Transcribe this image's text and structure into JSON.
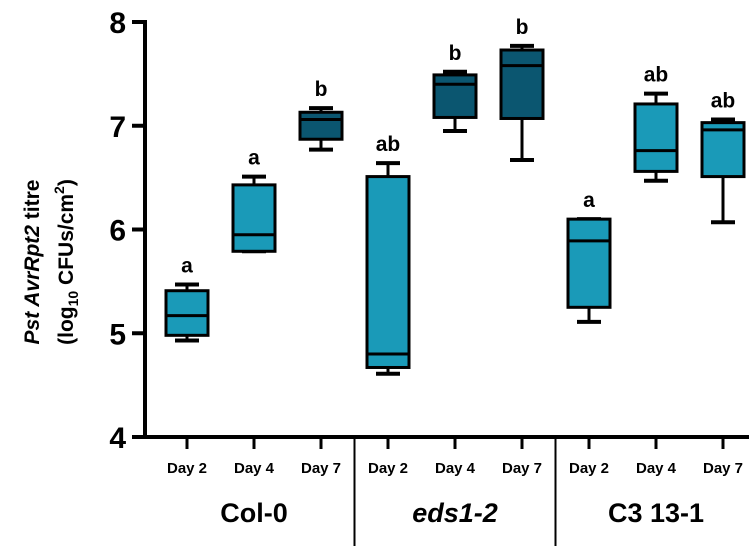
{
  "chart_data": {
    "type": "box",
    "ylabel_line1": {
      "prefix": "Pst AvrRpt2",
      "suffix": " titre"
    },
    "ylabel_line2": {
      "a": "(log",
      "sub": "10",
      "b": " CFUs/cm",
      "sup": "2",
      "c": ")"
    },
    "ylim": [
      4,
      8
    ],
    "yticks": [
      "4",
      "5",
      "6",
      "7",
      "8"
    ],
    "groups": [
      {
        "name": "Col-0",
        "italic": false
      },
      {
        "name": "eds1-2",
        "italic": true
      },
      {
        "name": "C3 13-1",
        "italic": false
      }
    ],
    "colors": {
      "light": "#1a9ab8",
      "dark": "#0b5670",
      "outline": "#000000"
    },
    "boxes": [
      {
        "group": "Col-0",
        "label": "Day 2",
        "min": 4.93,
        "q1": 4.98,
        "median": 5.17,
        "q3": 5.41,
        "max": 5.47,
        "sig": "a",
        "shade": "light"
      },
      {
        "group": "Col-0",
        "label": "Day 4",
        "min": 5.79,
        "q1": 5.79,
        "median": 5.95,
        "q3": 6.43,
        "max": 6.51,
        "sig": "a",
        "shade": "light"
      },
      {
        "group": "Col-0",
        "label": "Day 7",
        "min": 6.77,
        "q1": 6.87,
        "median": 7.06,
        "q3": 7.13,
        "max": 7.17,
        "sig": "b",
        "shade": "dark"
      },
      {
        "group": "eds1-2",
        "label": "Day 2",
        "min": 4.61,
        "q1": 4.67,
        "median": 4.8,
        "q3": 6.51,
        "max": 6.64,
        "sig": "ab",
        "shade": "light"
      },
      {
        "group": "eds1-2",
        "label": "Day 4",
        "min": 6.95,
        "q1": 7.08,
        "median": 7.4,
        "q3": 7.49,
        "max": 7.52,
        "sig": "b",
        "shade": "dark"
      },
      {
        "group": "eds1-2",
        "label": "Day 7",
        "min": 6.67,
        "q1": 7.07,
        "median": 7.58,
        "q3": 7.73,
        "max": 7.77,
        "sig": "b",
        "shade": "dark"
      },
      {
        "group": "C3 13-1",
        "label": "Day 2",
        "min": 5.11,
        "q1": 5.25,
        "median": 5.89,
        "q3": 6.1,
        "max": 6.1,
        "sig": "a",
        "shade": "light"
      },
      {
        "group": "C3 13-1",
        "label": "Day 4",
        "min": 6.47,
        "q1": 6.56,
        "median": 6.76,
        "q3": 7.21,
        "max": 7.31,
        "sig": "ab",
        "shade": "light"
      },
      {
        "group": "C3 13-1",
        "label": "Day 7",
        "min": 6.07,
        "q1": 6.51,
        "median": 6.96,
        "q3": 7.03,
        "max": 7.06,
        "sig": "ab",
        "shade": "light"
      }
    ]
  }
}
